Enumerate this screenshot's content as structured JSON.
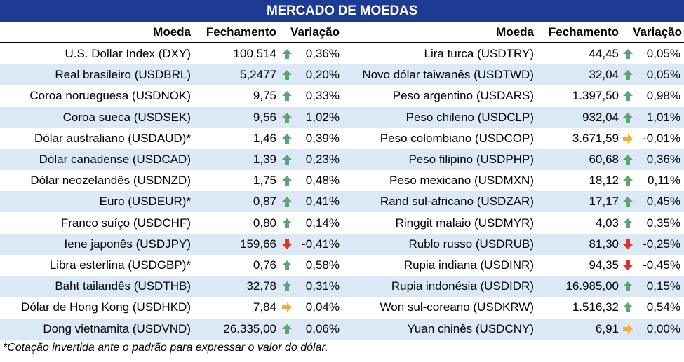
{
  "title": "MERCADO DE MOEDAS",
  "headers": {
    "moeda": "Moeda",
    "fechamento": "Fechamento",
    "variacao": "Variação"
  },
  "colors": {
    "up": "#5aa66e",
    "down": "#d9342b",
    "flat": "#f2b035",
    "title_bg": "#1f3a93",
    "alt_row": "#dde8f6"
  },
  "left": [
    {
      "name": "U.S. Dollar Index (DXY)",
      "close": "100,514",
      "trend": "up",
      "change": "0,36%"
    },
    {
      "name": "Real brasileiro (USDBRL)",
      "close": "5,2477",
      "trend": "up",
      "change": "0,20%"
    },
    {
      "name": "Coroa norueguesa (USDNOK)",
      "close": "9,75",
      "trend": "up",
      "change": "0,33%"
    },
    {
      "name": "Coroa sueca (USDSEK)",
      "close": "9,56",
      "trend": "up",
      "change": "1,02%"
    },
    {
      "name": "Dólar australiano (USDAUD)*",
      "close": "1,46",
      "trend": "up",
      "change": "0,39%"
    },
    {
      "name": "Dólar canadense (USDCAD)",
      "close": "1,39",
      "trend": "up",
      "change": "0,23%"
    },
    {
      "name": "Dólar neozelandês (USDNZD)",
      "close": "1,75",
      "trend": "up",
      "change": "0,48%"
    },
    {
      "name": "Euro (USDEUR)*",
      "close": "0,87",
      "trend": "up",
      "change": "0,41%"
    },
    {
      "name": "Franco suíço (USDCHF)",
      "close": "0,80",
      "trend": "up",
      "change": "0,14%"
    },
    {
      "name": "Iene japonês (USDJPY)",
      "close": "159,66",
      "trend": "down",
      "change": "-0,41%"
    },
    {
      "name": "Libra esterlina (USDGBP)*",
      "close": "0,76",
      "trend": "up",
      "change": "0,58%"
    },
    {
      "name": "Baht tailandês (USDTHB)",
      "close": "32,78",
      "trend": "up",
      "change": "0,31%"
    },
    {
      "name": "Dólar de Hong Kong (USDHKD)",
      "close": "7,84",
      "trend": "flat",
      "change": "0,04%"
    },
    {
      "name": "Dong vietnamita (USDVND)",
      "close": "26.335,00",
      "trend": "up",
      "change": "0,06%"
    }
  ],
  "right": [
    {
      "name": "Lira turca (USDTRY)",
      "close": "44,45",
      "trend": "up",
      "change": "0,05%"
    },
    {
      "name": "Novo dólar taiwanês (USDTWD)",
      "close": "32,04",
      "trend": "up",
      "change": "0,05%"
    },
    {
      "name": "Peso argentino (USDARS)",
      "close": "1.397,50",
      "trend": "up",
      "change": "0,98%"
    },
    {
      "name": "Peso chileno (USDCLP)",
      "close": "932,04",
      "trend": "up",
      "change": "1,01%"
    },
    {
      "name": "Peso colombiano (USDCOP)",
      "close": "3.671,59",
      "trend": "flat",
      "change": "-0,01%"
    },
    {
      "name": "Peso filipino (USDPHP)",
      "close": "60,68",
      "trend": "up",
      "change": "0,36%"
    },
    {
      "name": "Peso mexicano (USDMXN)",
      "close": "18,12",
      "trend": "up",
      "change": "0,11%"
    },
    {
      "name": "Rand sul-africano (USDZAR)",
      "close": "17,17",
      "trend": "up",
      "change": "0,45%"
    },
    {
      "name": "Ringgit malaio (USDMYR)",
      "close": "4,03",
      "trend": "up",
      "change": "0,35%"
    },
    {
      "name": "Rublo russo (USDRUB)",
      "close": "81,30",
      "trend": "down",
      "change": "-0,25%"
    },
    {
      "name": "Rupia indiana (USDINR)",
      "close": "94,35",
      "trend": "down",
      "change": "-0,45%"
    },
    {
      "name": "Rupia indonésia (USDIDR)",
      "close": "16.985,00",
      "trend": "up",
      "change": "0,15%"
    },
    {
      "name": "Won sul-coreano (USDKRW)",
      "close": "1.516,32",
      "trend": "up",
      "change": "0,54%"
    },
    {
      "name": "Yuan chinês (USDCNY)",
      "close": "6,91",
      "trend": "flat",
      "change": "0,00%"
    }
  ],
  "footnote": "*Cotação invertida ante o padrão para expressar o valor do dólar."
}
